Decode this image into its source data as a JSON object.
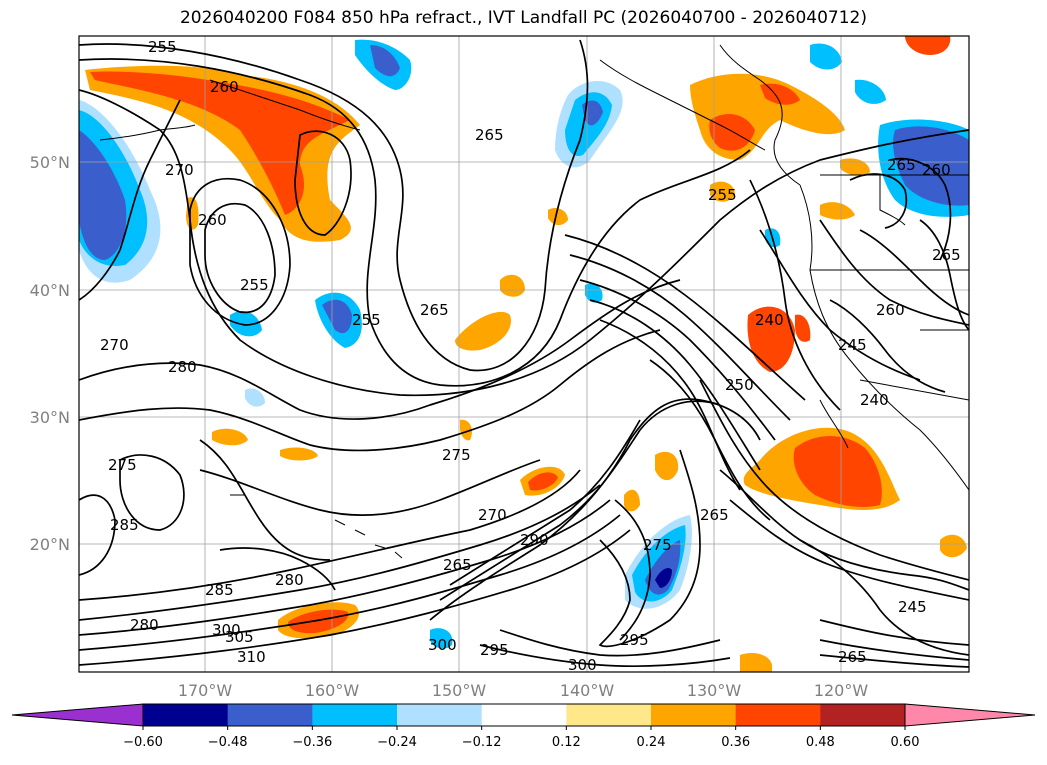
{
  "title": "2026040200 F084 850 hPa refract., IVT Landfall PC (2026040700 - 2026040712)",
  "lat_ticks": [
    "50°N",
    "40°N",
    "30°N",
    "20°N"
  ],
  "lon_ticks": [
    "170°W",
    "160°W",
    "150°W",
    "140°W",
    "130°W",
    "120°W"
  ],
  "colorbar": {
    "ticks": [
      "−0.60",
      "−0.48",
      "−0.36",
      "−0.24",
      "−0.12",
      "0.12",
      "0.24",
      "0.36",
      "0.48",
      "0.60"
    ],
    "colors": [
      "#9b30d0",
      "#000090",
      "#3a5fcd",
      "#00bfff",
      "#b0e0ff",
      "#ffffff",
      "#ffe88a",
      "#ffa500",
      "#ff4500",
      "#b22222",
      "#ff88aa"
    ]
  },
  "contour_labels": [
    "255",
    "260",
    "265",
    "270",
    "260",
    "255",
    "255",
    "265",
    "280",
    "270",
    "265",
    "255",
    "260",
    "265",
    "260",
    "245",
    "240",
    "240",
    "250",
    "275",
    "275",
    "270",
    "290",
    "265",
    "285",
    "280",
    "275",
    "265",
    "285",
    "280",
    "300",
    "305",
    "310",
    "300",
    "295",
    "295",
    "300",
    "245",
    "265"
  ]
}
